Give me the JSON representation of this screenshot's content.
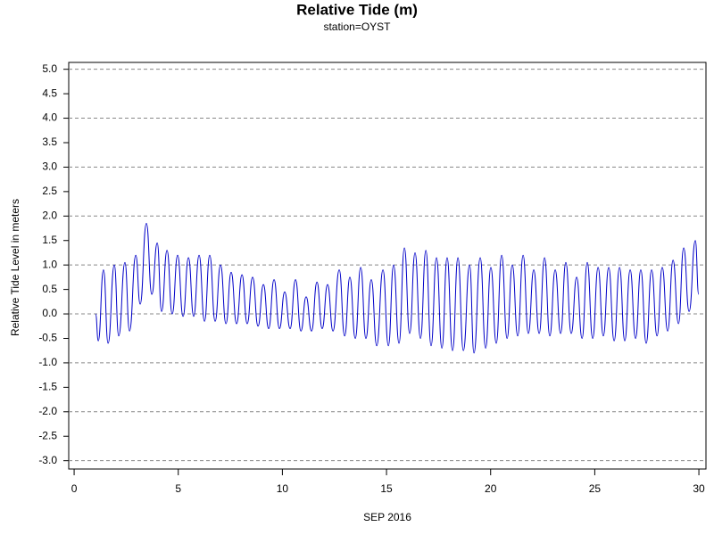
{
  "chart_data": {
    "type": "line",
    "title": "Relative Tide (m)",
    "subtitle": "station=OYST",
    "x_label": "SEP 2016",
    "y_label": "Relative Tide Level in meters",
    "xlim": [
      -0.26,
      30.34
    ],
    "xticks": [
      0,
      5,
      10,
      15,
      20,
      25,
      30
    ],
    "ylim": [
      -3.17,
      5.14
    ],
    "yticks": [
      {
        "value": -3,
        "label": "-3.0"
      },
      -2.5,
      {
        "value": -2,
        "label": "-2.0"
      },
      -1.5,
      {
        "value": -1,
        "label": "-1.0"
      },
      -0.5,
      {
        "value": 0,
        "label": "0.0"
      },
      0.5,
      {
        "value": 1,
        "label": "1.0"
      },
      1.5,
      {
        "value": 2,
        "label": "2.0"
      },
      2.5,
      {
        "value": 3,
        "label": "3.0"
      },
      3.5,
      {
        "value": 4,
        "label": "4.0"
      },
      4.5,
      {
        "value": 5,
        "label": "5.0"
      }
    ],
    "grid": true,
    "series": [
      {
        "color": "#0000c8",
        "x": [
          1.03,
          1.16,
          1.41,
          1.63,
          1.93,
          2.14,
          2.44,
          2.66,
          2.96,
          3.17,
          3.47,
          3.73,
          3.99,
          4.2,
          4.46,
          4.71,
          4.97,
          5.23,
          5.49,
          5.74,
          6.0,
          6.26,
          6.51,
          6.77,
          7.03,
          7.29,
          7.54,
          7.8,
          8.06,
          8.31,
          8.57,
          8.83,
          9.09,
          9.34,
          9.6,
          9.86,
          10.11,
          10.37,
          10.63,
          10.89,
          11.14,
          11.4,
          11.66,
          11.91,
          12.17,
          12.43,
          12.73,
          12.99,
          13.24,
          13.5,
          13.76,
          14.01,
          14.27,
          14.53,
          14.83,
          15.09,
          15.34,
          15.6,
          15.86,
          16.11,
          16.37,
          16.63,
          16.89,
          17.14,
          17.4,
          17.66,
          17.91,
          18.17,
          18.43,
          18.69,
          18.99,
          19.2,
          19.5,
          19.76,
          20.01,
          20.27,
          20.53,
          20.79,
          21.04,
          21.3,
          21.56,
          21.81,
          22.07,
          22.33,
          22.59,
          22.84,
          23.1,
          23.36,
          23.61,
          23.87,
          24.13,
          24.39,
          24.64,
          24.9,
          25.16,
          25.41,
          25.67,
          25.93,
          26.19,
          26.44,
          26.7,
          26.96,
          27.21,
          27.47,
          27.73,
          27.99,
          28.24,
          28.5,
          28.76,
          29.02,
          29.27,
          29.53,
          29.83,
          29.99
        ],
        "values": [
          0.0,
          -0.55,
          0.9,
          -0.6,
          1.0,
          -0.45,
          1.05,
          -0.35,
          1.2,
          0.2,
          1.85,
          0.4,
          1.45,
          0.05,
          1.3,
          0.0,
          1.2,
          -0.05,
          1.15,
          -0.05,
          1.2,
          -0.15,
          1.2,
          -0.15,
          1.0,
          -0.2,
          0.85,
          -0.2,
          0.8,
          -0.2,
          0.75,
          -0.25,
          0.6,
          -0.3,
          0.7,
          -0.3,
          0.45,
          -0.3,
          0.7,
          -0.35,
          0.35,
          -0.35,
          0.65,
          -0.3,
          0.6,
          -0.35,
          0.9,
          -0.45,
          0.75,
          -0.5,
          0.95,
          -0.5,
          0.7,
          -0.65,
          0.9,
          -0.65,
          1.0,
          -0.6,
          1.35,
          -0.4,
          1.25,
          -0.5,
          1.3,
          -0.65,
          1.15,
          -0.7,
          1.15,
          -0.75,
          1.15,
          -0.75,
          1.0,
          -0.8,
          1.15,
          -0.7,
          0.95,
          -0.6,
          1.2,
          -0.5,
          1.0,
          -0.45,
          1.2,
          -0.4,
          0.9,
          -0.4,
          1.15,
          -0.45,
          0.9,
          -0.4,
          1.05,
          -0.4,
          0.75,
          -0.5,
          1.05,
          -0.5,
          0.95,
          -0.45,
          0.95,
          -0.55,
          0.95,
          -0.55,
          0.9,
          -0.5,
          0.9,
          -0.6,
          0.9,
          -0.45,
          0.95,
          -0.35,
          1.1,
          -0.2,
          1.35,
          0.05,
          1.5,
          0.4
        ]
      }
    ]
  }
}
